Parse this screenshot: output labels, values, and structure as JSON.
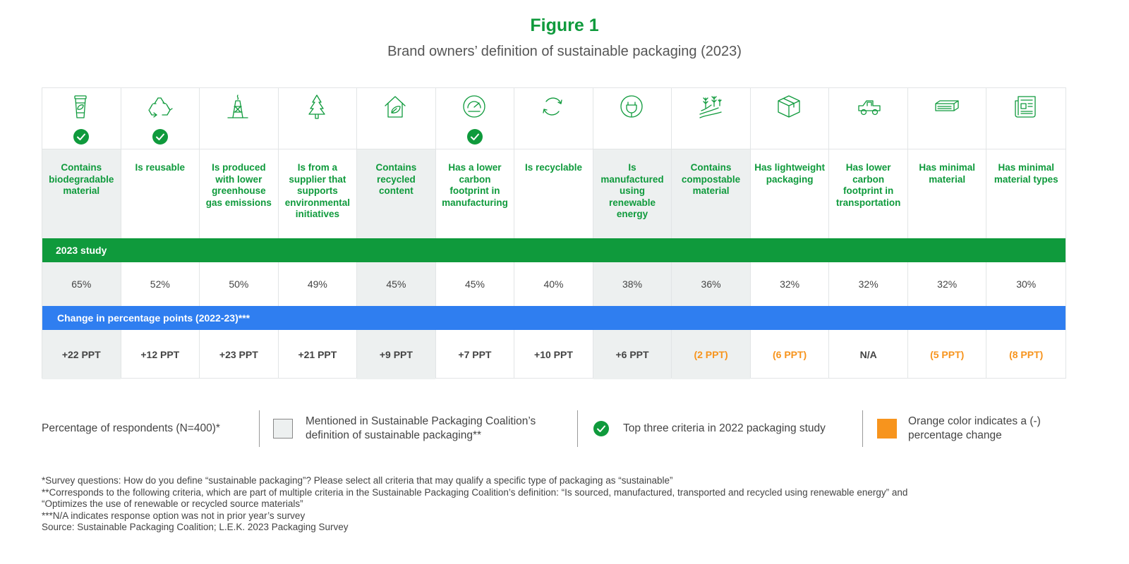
{
  "figure": {
    "title": "Figure 1",
    "subtitle": "Brand owners’ definition of sustainable packaging (2023)"
  },
  "colors": {
    "green": "#0f9a3c",
    "blue": "#2f7ef0",
    "orange": "#f7941d",
    "shade": "#edf0f0"
  },
  "chart_data": {
    "type": "table",
    "title": "Brand owners’ definition of sustainable packaging (2023)",
    "rows": {
      "study_label": "2023 study",
      "change_label": "Change in percentage points (2022-23)***"
    },
    "criteria": [
      {
        "label": "Contains biodegradable material",
        "icon": "coffee-cup-leaf-icon",
        "value": "65%",
        "change": "+22 PPT",
        "negative": false,
        "spc": true,
        "top3_2022": true
      },
      {
        "label": "Is reusable",
        "icon": "recycle-arrows-icon",
        "value": "52%",
        "change": "+12 PPT",
        "negative": false,
        "spc": false,
        "top3_2022": true
      },
      {
        "label": "Is produced with lower greenhouse gas emissions",
        "icon": "oil-rig-icon",
        "value": "50%",
        "change": "+23 PPT",
        "negative": false,
        "spc": false,
        "top3_2022": false
      },
      {
        "label": "Is from a supplier that supports environmental initiatives",
        "icon": "tree-icon",
        "value": "49%",
        "change": "+21 PPT",
        "negative": false,
        "spc": false,
        "top3_2022": false
      },
      {
        "label": "Contains recycled content",
        "icon": "house-leaf-icon",
        "value": "45%",
        "change": "+9 PPT",
        "negative": false,
        "spc": true,
        "top3_2022": false
      },
      {
        "label": "Has a lower carbon footprint in manufacturing",
        "icon": "gauge-icon",
        "value": "45%",
        "change": "+7 PPT",
        "negative": false,
        "spc": false,
        "top3_2022": true
      },
      {
        "label": "Is recyclable",
        "icon": "cycle-arrows-icon",
        "value": "40%",
        "change": "+10 PPT",
        "negative": false,
        "spc": false,
        "top3_2022": false
      },
      {
        "label": "Is manufactured using renewable energy",
        "icon": "plug-leaf-icon",
        "value": "38%",
        "change": "+6 PPT",
        "negative": false,
        "spc": true,
        "top3_2022": false
      },
      {
        "label": "Contains compostable material",
        "icon": "field-plants-icon",
        "value": "36%",
        "change": "(2 PPT)",
        "negative": true,
        "spc": true,
        "top3_2022": false
      },
      {
        "label": "Has lightweight packaging",
        "icon": "box-icon",
        "value": "32%",
        "change": "(6 PPT)",
        "negative": true,
        "spc": false,
        "top3_2022": false
      },
      {
        "label": "Has lower carbon footprint in transportation",
        "icon": "pickup-truck-icon",
        "value": "32%",
        "change": "N/A",
        "negative": false,
        "spc": false,
        "top3_2022": false
      },
      {
        "label": "Has minimal material",
        "icon": "flat-package-icon",
        "value": "32%",
        "change": "(5 PPT)",
        "negative": true,
        "spc": false,
        "top3_2022": false
      },
      {
        "label": "Has minimal material types",
        "icon": "newspaper-icon",
        "value": "30%",
        "change": "(8 PPT)",
        "negative": true,
        "spc": false,
        "top3_2022": false
      }
    ]
  },
  "legend": {
    "respondents": "Percentage of respondents (N=400)*",
    "spc_line1": "Mentioned in Sustainable Packaging Coalition’s",
    "spc_line2": "definition of sustainable packaging**",
    "top3": "Top three criteria in 2022 packaging study",
    "orange_line1": "Orange color indicates a (-)",
    "orange_line2": "percentage change"
  },
  "notes": [
    "*Survey questions: How do you define “sustainable packaging”? Please select all criteria that may qualify a specific type of packaging as “sustainable”",
    "**Corresponds to the following criteria, which are part of multiple criteria in the Sustainable Packaging Coalition’s definition: “Is sourced, manufactured, transported and recycled using renewable energy” and",
    "“Optimizes the use of renewable or recycled source materials”",
    "***N/A indicates response option was not in prior year’s survey",
    "Source: Sustainable Packaging Coalition; L.E.K. 2023 Packaging Survey"
  ]
}
